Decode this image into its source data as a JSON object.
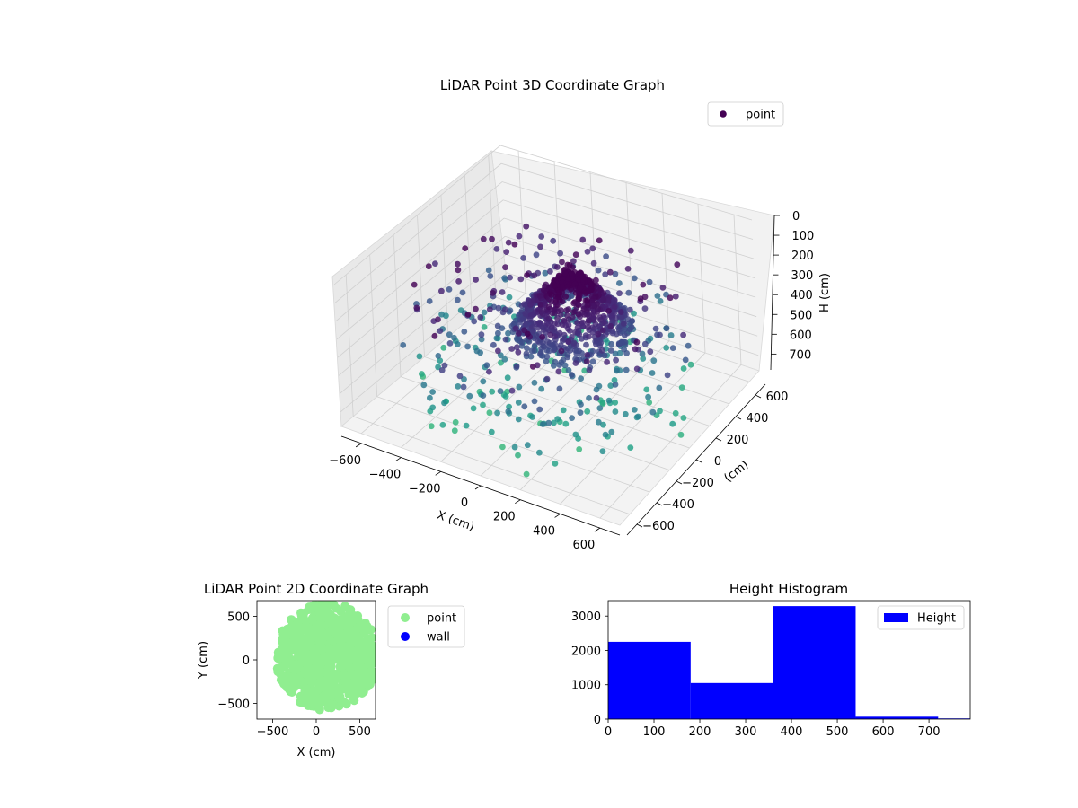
{
  "chart_data": [
    {
      "type": "scatter",
      "title": "LiDAR Point 3D Coordinate Graph",
      "xlabel": "X (cm)",
      "ylabel": "(cm)",
      "zlabel": "H (cm)",
      "xlim": [
        -700,
        700
      ],
      "ylim": [
        -700,
        700
      ],
      "zlim": [
        780,
        0
      ],
      "x_ticks": [
        -600,
        -400,
        -200,
        0,
        200,
        400,
        600
      ],
      "y_ticks": [
        -600,
        -400,
        -200,
        0,
        200,
        400,
        600
      ],
      "z_ticks": [
        0,
        100,
        200,
        300,
        400,
        500,
        600,
        700
      ],
      "grid": true,
      "legend": "top-right",
      "colormap": "viridis",
      "series": [
        {
          "name": "point",
          "color": "#440154"
        }
      ]
    },
    {
      "type": "scatter",
      "title": "LiDAR Point 2D Coordinate Graph",
      "xlabel": "X (cm)",
      "ylabel": "Y (cm)",
      "xlim": [
        -680,
        680
      ],
      "ylim": [
        -680,
        680
      ],
      "x_ticks": [
        -500,
        0,
        500
      ],
      "y_ticks": [
        -500,
        0,
        500
      ],
      "legend": "outside-right",
      "series": [
        {
          "name": "point",
          "color": "#90ee90"
        },
        {
          "name": "wall",
          "color": "#0000ff"
        }
      ]
    },
    {
      "type": "bar",
      "title": "Height Histogram",
      "xlim": [
        0,
        790
      ],
      "ylim": [
        0,
        3450
      ],
      "x_ticks": [
        0,
        100,
        200,
        300,
        400,
        500,
        600,
        700
      ],
      "y_ticks": [
        0,
        1000,
        2000,
        3000
      ],
      "bins": [
        {
          "start": 0,
          "end": 180,
          "value": 2250
        },
        {
          "start": 180,
          "end": 360,
          "value": 1050
        },
        {
          "start": 360,
          "end": 540,
          "value": 3290
        },
        {
          "start": 540,
          "end": 720,
          "value": 70
        },
        {
          "start": 720,
          "end": 790,
          "value": 20
        }
      ],
      "color": "#0000ff",
      "legend": "top-right",
      "series": [
        {
          "name": "Height",
          "color": "#0000ff"
        }
      ]
    }
  ]
}
